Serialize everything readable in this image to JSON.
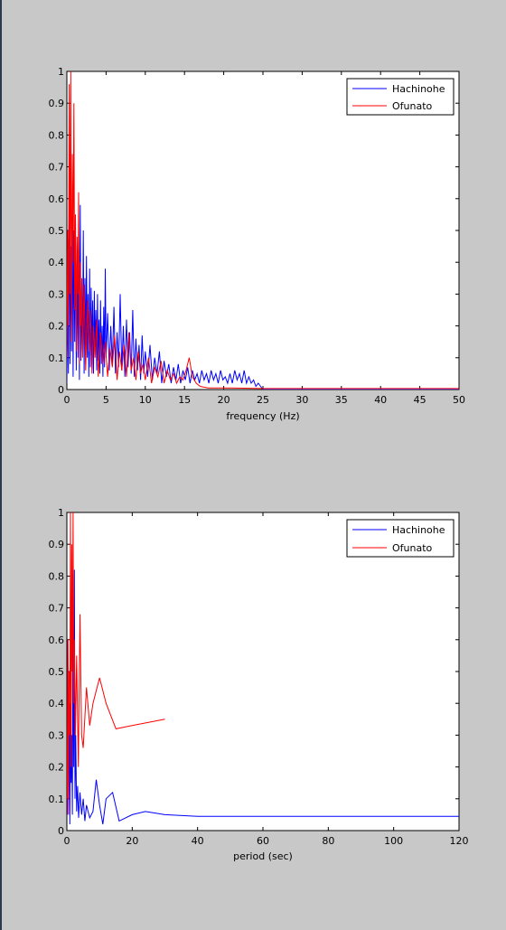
{
  "colors": {
    "figure_background": "#c8c8c8",
    "axes_background": "#ffffff",
    "hachinohe": "#0000ff",
    "ofunato": "#ff0000"
  },
  "chart_data": [
    {
      "type": "line",
      "title": "",
      "xlabel": "frequency (Hz)",
      "ylabel": "",
      "xlim": [
        0,
        50
      ],
      "ylim": [
        0,
        1
      ],
      "xticks": [
        0,
        5,
        10,
        15,
        20,
        25,
        30,
        35,
        40,
        45,
        50
      ],
      "yticks": [
        0,
        0.1,
        0.2,
        0.3,
        0.4,
        0.5,
        0.6,
        0.7,
        0.8,
        0.9,
        1
      ],
      "grid": false,
      "legend_location": "top-right",
      "series": [
        {
          "name": "Hachinohe",
          "color": "#0000ff",
          "x": [
            0,
            0.1,
            0.2,
            0.3,
            0.4,
            0.5,
            0.6,
            0.7,
            0.8,
            0.9,
            1,
            1.1,
            1.2,
            1.3,
            1.4,
            1.5,
            1.6,
            1.7,
            1.8,
            1.9,
            2,
            2.1,
            2.2,
            2.3,
            2.4,
            2.5,
            2.6,
            2.7,
            2.8,
            2.9,
            3,
            3.1,
            3.2,
            3.3,
            3.4,
            3.5,
            3.6,
            3.7,
            3.8,
            3.9,
            4,
            4.1,
            4.2,
            4.3,
            4.4,
            4.5,
            4.6,
            4.7,
            4.8,
            4.9,
            5,
            5.2,
            5.4,
            5.6,
            5.8,
            6,
            6.2,
            6.4,
            6.6,
            6.8,
            7,
            7.2,
            7.4,
            7.6,
            7.8,
            8,
            8.2,
            8.4,
            8.6,
            8.8,
            9,
            9.2,
            9.4,
            9.6,
            9.8,
            10,
            10.3,
            10.6,
            10.9,
            11.2,
            11.5,
            11.8,
            12.1,
            12.4,
            12.7,
            13,
            13.3,
            13.6,
            13.9,
            14.2,
            14.5,
            14.8,
            15.1,
            15.4,
            15.7,
            16,
            16.3,
            16.6,
            16.9,
            17.2,
            17.5,
            17.8,
            18.1,
            18.4,
            18.7,
            19,
            19.3,
            19.6,
            19.9,
            20.2,
            20.5,
            20.8,
            21.1,
            21.4,
            21.7,
            22,
            22.3,
            22.6,
            22.9,
            23.2,
            23.5,
            23.8,
            24.1,
            24.4,
            24.7,
            25,
            26,
            30,
            35,
            40,
            45,
            50
          ],
          "y": [
            0.02,
            0.3,
            0.05,
            0.62,
            0.08,
            0.45,
            0.12,
            0.6,
            0.04,
            0.5,
            0.15,
            0.55,
            0.06,
            0.4,
            0.1,
            0.48,
            0.03,
            0.58,
            0.09,
            0.3,
            0.12,
            0.5,
            0.05,
            0.35,
            0.08,
            0.42,
            0.1,
            0.3,
            0.04,
            0.38,
            0.07,
            0.32,
            0.1,
            0.28,
            0.05,
            0.31,
            0.12,
            0.25,
            0.06,
            0.3,
            0.09,
            0.22,
            0.05,
            0.28,
            0.08,
            0.2,
            0.04,
            0.26,
            0.07,
            0.38,
            0.1,
            0.24,
            0.06,
            0.2,
            0.08,
            0.26,
            0.05,
            0.18,
            0.07,
            0.3,
            0.06,
            0.2,
            0.04,
            0.22,
            0.07,
            0.18,
            0.05,
            0.25,
            0.04,
            0.16,
            0.06,
            0.14,
            0.03,
            0.17,
            0.05,
            0.12,
            0.04,
            0.14,
            0.03,
            0.1,
            0.05,
            0.12,
            0.02,
            0.09,
            0.04,
            0.08,
            0.02,
            0.07,
            0.03,
            0.08,
            0.02,
            0.06,
            0.03,
            0.07,
            0.02,
            0.06,
            0.03,
            0.05,
            0.02,
            0.06,
            0.03,
            0.05,
            0.02,
            0.06,
            0.03,
            0.05,
            0.02,
            0.06,
            0.03,
            0.04,
            0.02,
            0.05,
            0.02,
            0.06,
            0.03,
            0.05,
            0.02,
            0.06,
            0.02,
            0.04,
            0.02,
            0.03,
            0.01,
            0.02,
            0.01,
            0,
            0,
            0,
            0,
            0,
            0,
            0
          ]
        },
        {
          "name": "Ofunato",
          "color": "#ff0000",
          "x": [
            0,
            0.1,
            0.2,
            0.3,
            0.4,
            0.5,
            0.6,
            0.7,
            0.8,
            0.9,
            1,
            1.1,
            1.2,
            1.3,
            1.4,
            1.5,
            1.6,
            1.7,
            1.8,
            1.9,
            2,
            2.2,
            2.4,
            2.6,
            2.8,
            3,
            3.2,
            3.4,
            3.6,
            3.8,
            4,
            4.3,
            4.6,
            4.9,
            5.2,
            5.5,
            5.8,
            6.1,
            6.4,
            6.7,
            7,
            7.3,
            7.6,
            7.9,
            8.2,
            8.5,
            8.8,
            9.1,
            9.4,
            9.7,
            10,
            10.4,
            10.8,
            11.2,
            11.6,
            12,
            12.4,
            12.8,
            13.2,
            13.6,
            14,
            14.4,
            14.8,
            15.2,
            15.6,
            16,
            16.5,
            17,
            18,
            20,
            25,
            30,
            35,
            40,
            45,
            50
          ],
          "y": [
            0.1,
            0.5,
            0.2,
            0.96,
            0.3,
            1,
            0.15,
            0.74,
            0.4,
            0.9,
            0.25,
            0.55,
            0.12,
            0.48,
            0.3,
            0.62,
            0.08,
            0.4,
            0.2,
            0.35,
            0.1,
            0.33,
            0.06,
            0.28,
            0.12,
            0.25,
            0.05,
            0.2,
            0.1,
            0.22,
            0.04,
            0.18,
            0.08,
            0.15,
            0.04,
            0.13,
            0.07,
            0.17,
            0.03,
            0.12,
            0.06,
            0.14,
            0.04,
            0.18,
            0.06,
            0.1,
            0.03,
            0.12,
            0.05,
            0.08,
            0.03,
            0.1,
            0.02,
            0.07,
            0.04,
            0.09,
            0.02,
            0.06,
            0.03,
            0.05,
            0.02,
            0.04,
            0.03,
            0.06,
            0.1,
            0.04,
            0.02,
            0.01,
            0.005,
            0.005,
            0.003,
            0.003,
            0.003,
            0.003,
            0.003,
            0.003
          ]
        }
      ]
    },
    {
      "type": "line",
      "title": "",
      "xlabel": "period (sec)",
      "ylabel": "",
      "xlim": [
        0,
        120
      ],
      "ylim": [
        0,
        1
      ],
      "xticks": [
        0,
        20,
        40,
        60,
        80,
        100,
        120
      ],
      "yticks": [
        0,
        0.1,
        0.2,
        0.3,
        0.4,
        0.5,
        0.6,
        0.7,
        0.8,
        0.9,
        1
      ],
      "grid": false,
      "legend_location": "top-right",
      "series": [
        {
          "name": "Hachinohe",
          "color": "#0000ff",
          "x": [
            0.1,
            0.3,
            0.5,
            0.7,
            0.9,
            1.1,
            1.3,
            1.5,
            1.7,
            1.9,
            2.1,
            2.3,
            2.5,
            2.7,
            3,
            3.3,
            3.6,
            4,
            4.5,
            5,
            5.5,
            6,
            7,
            8,
            9,
            10,
            11,
            12,
            14,
            16,
            20,
            24,
            30,
            40,
            50,
            60,
            80,
            100,
            120
          ],
          "y": [
            0.05,
            0.6,
            0.1,
            0.45,
            0.02,
            0.4,
            0.15,
            0.3,
            0.05,
            0.7,
            0.2,
            0.82,
            0.1,
            0.3,
            0.06,
            0.14,
            0.04,
            0.12,
            0.05,
            0.1,
            0.03,
            0.08,
            0.04,
            0.06,
            0.16,
            0.08,
            0.02,
            0.1,
            0.12,
            0.03,
            0.05,
            0.06,
            0.05,
            0.045,
            0.045,
            0.045,
            0.045,
            0.045,
            0.045
          ]
        },
        {
          "name": "Ofunato",
          "color": "#ff0000",
          "x": [
            0.1,
            0.3,
            0.5,
            0.7,
            0.9,
            1.1,
            1.3,
            1.5,
            1.7,
            1.9,
            2.1,
            2.3,
            2.6,
            3,
            3.5,
            4,
            4.5,
            5,
            6,
            7,
            8,
            10,
            12,
            15,
            20,
            25,
            30
          ],
          "y": [
            0.1,
            0.6,
            0.05,
            0.5,
            0.3,
            1,
            0.2,
            0.9,
            0.5,
            1,
            0.4,
            0.6,
            0.3,
            0.55,
            0.2,
            0.68,
            0.3,
            0.26,
            0.45,
            0.33,
            0.4,
            0.48,
            0.4,
            0.32,
            0.33,
            0.34,
            0.35
          ]
        }
      ]
    }
  ]
}
